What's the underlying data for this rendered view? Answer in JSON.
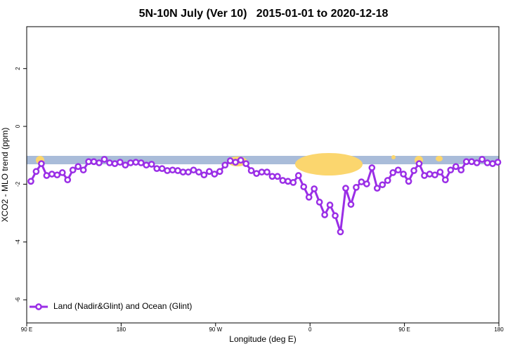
{
  "chart_data": {
    "type": "line",
    "title": "5N-10N July (Ver 10)   2015-01-01 to 2020-12-18",
    "xlabel": "Longitude (deg E)",
    "ylabel": "XCO2 - MLO trend (ppm)",
    "xlim": [
      90,
      540
    ],
    "xticks": [
      {
        "value": 90,
        "label": "90 E"
      },
      180,
      {
        "value": 270,
        "label": "90 W"
      },
      {
        "value": 360,
        "label": "0"
      },
      {
        "value": 450,
        "label": "90 E"
      },
      {
        "value": 540,
        "label": "180"
      }
    ],
    "ylim": [
      -6.8,
      3.45
    ],
    "yticks": [
      -6,
      -4,
      -2,
      0,
      2
    ],
    "grid": false,
    "legend_position": "bottomleft",
    "x": [
      94,
      99,
      104,
      109,
      114,
      119,
      124,
      129,
      134,
      139,
      144,
      149,
      154,
      159,
      164,
      169,
      174,
      179,
      184,
      189,
      194,
      199,
      204,
      209,
      214,
      219,
      224,
      229,
      234,
      239,
      244,
      249,
      254,
      259,
      264,
      269,
      274,
      279,
      284,
      289,
      294,
      299,
      304,
      309,
      314,
      319,
      324,
      329,
      334,
      339,
      344,
      349,
      354,
      359,
      364,
      369,
      374,
      379,
      384,
      389,
      394,
      399,
      404,
      409,
      414,
      419,
      424,
      429,
      434,
      439,
      444,
      449,
      454,
      459,
      464,
      469,
      474,
      479,
      484,
      489,
      494,
      499,
      504,
      509,
      514,
      519,
      524,
      529,
      534,
      539
    ],
    "series": [
      {
        "name": "Land (Nadir&Glint) and Ocean (Glint)",
        "color": "#9a2ee6",
        "values": [
          -1.9,
          -1.56,
          -1.29,
          -1.7,
          -1.65,
          -1.68,
          -1.6,
          -1.85,
          -1.51,
          -1.39,
          -1.51,
          -1.22,
          -1.22,
          -1.26,
          -1.14,
          -1.26,
          -1.29,
          -1.24,
          -1.34,
          -1.26,
          -1.24,
          -1.26,
          -1.34,
          -1.31,
          -1.46,
          -1.46,
          -1.53,
          -1.51,
          -1.53,
          -1.58,
          -1.58,
          -1.51,
          -1.58,
          -1.68,
          -1.56,
          -1.65,
          -1.56,
          -1.34,
          -1.19,
          -1.24,
          -1.17,
          -1.29,
          -1.53,
          -1.63,
          -1.58,
          -1.58,
          -1.73,
          -1.73,
          -1.87,
          -1.9,
          -1.94,
          -1.7,
          -2.09,
          -2.45,
          -2.16,
          -2.62,
          -3.06,
          -2.72,
          -3.09,
          -3.65,
          -2.14,
          -2.7,
          -2.11,
          -1.92,
          -1.99,
          -1.43,
          -2.14,
          -2.02,
          -1.87,
          -1.6,
          -1.51,
          -1.65,
          -1.9,
          -1.53,
          -1.29,
          -1.7,
          -1.65,
          -1.68,
          -1.58,
          -1.85,
          -1.51,
          -1.39,
          -1.51,
          -1.22,
          -1.22,
          -1.26,
          -1.14,
          -1.26,
          -1.29,
          -1.24
        ]
      }
    ]
  }
}
